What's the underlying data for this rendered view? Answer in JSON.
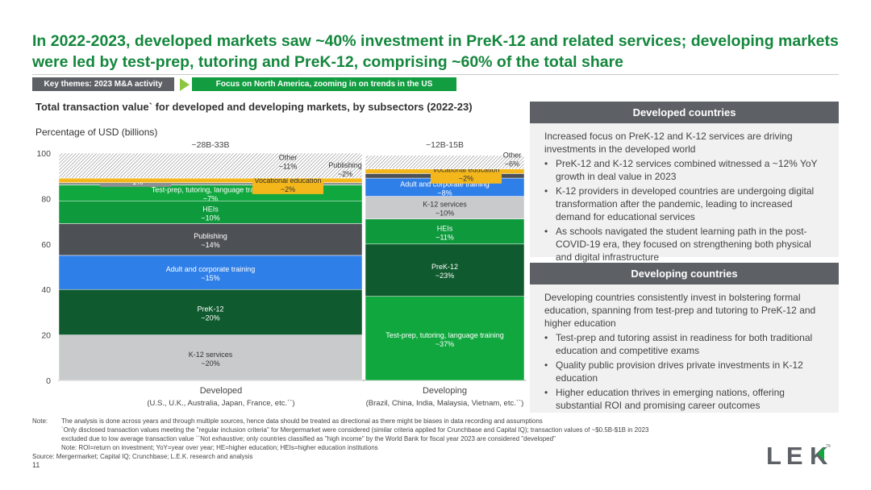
{
  "headline": "In 2022-2023, developed markets saw ~40% investment in PreK-12 and related services; developing markets were led by test-prep, tutoring and PreK-12, comprising ~60% of the total share",
  "tags": {
    "key_themes": "Key themes: 2023 M&A activity",
    "focus": "Focus on North America, zooming in on trends in the US"
  },
  "chart_header": {
    "title": "Total transaction value` for developed and developing markets, by subsectors (2022-23)",
    "subtitle": "Percentage of USD (billions)"
  },
  "colors": {
    "k12": "#c8cacc",
    "prek12": "#0f5a2e",
    "adult": "#2f7fe8",
    "publishing": "#4d5156",
    "heis": "#0e9a3c",
    "testprep": "#10a83e",
    "he_services": "#8c8f93",
    "vocational": "#f4b71b",
    "other_pattern": "#777777",
    "accent_green": "#14873d"
  },
  "chart_data": {
    "type": "bar",
    "stacked": true,
    "categories": [
      "Developed",
      "Developing"
    ],
    "category_notes": [
      "(U.S., U.K., Australia, Japan, France, etc.``)",
      "(Brazil, China, India, Malaysia, Vietnam, etc.``)"
    ],
    "totals": [
      "~28B-33B",
      "~12B-15B"
    ],
    "ylim": [
      0,
      100
    ],
    "yticks": [
      "0",
      "20",
      "40",
      "60",
      "80",
      "100"
    ],
    "grid": false,
    "columns": [
      {
        "segments": [
          {
            "key": "k12",
            "label": "K-12 services",
            "value_label": "~20%",
            "value": 20
          },
          {
            "key": "prek12",
            "label": "PreK-12",
            "value_label": "~20%",
            "value": 20
          },
          {
            "key": "adult",
            "label": "Adult and corporate training",
            "value_label": "~15%",
            "value": 15
          },
          {
            "key": "publishing",
            "label": "Publishing",
            "value_label": "~14%",
            "value": 14
          },
          {
            "key": "heis",
            "label": "HEIs",
            "value_label": "~10%",
            "value": 10
          },
          {
            "key": "testprep",
            "label": "Test-prep, tutoring, language training",
            "value_label": "~7%",
            "value": 7
          },
          {
            "key": "he_services",
            "label": "HE services",
            "value_label": "~1%",
            "value": 1
          },
          {
            "key": "vocational",
            "label": "Vocational education",
            "value_label": "~2%",
            "value": 2
          },
          {
            "key": "other",
            "label": "Other",
            "value_label": "~11%",
            "value": 11
          }
        ]
      },
      {
        "segments": [
          {
            "key": "testprep",
            "label": "Test-prep, tutoring, language training",
            "value_label": "~37%",
            "value": 37
          },
          {
            "key": "prek12",
            "label": "PreK-12",
            "value_label": "~23%",
            "value": 23
          },
          {
            "key": "heis",
            "label": "HEIs",
            "value_label": "~11%",
            "value": 11
          },
          {
            "key": "k12",
            "label": "K-12 services",
            "value_label": "~10%",
            "value": 10
          },
          {
            "key": "adult",
            "label": "Adult and corporate training",
            "value_label": "~8%",
            "value": 8
          },
          {
            "key": "publishing",
            "label": "Publishing",
            "value_label": "~2%",
            "value": 2
          },
          {
            "key": "vocational",
            "label": "Vocational education",
            "value_label": "~2%",
            "value": 2
          },
          {
            "key": "other",
            "label": "Other",
            "value_label": "~6%",
            "value": 6
          }
        ]
      }
    ]
  },
  "developed_panel": {
    "heading": "Developed countries",
    "intro": "Increased focus on PreK-12 and K-12 services are driving investments in the developed world",
    "bullets": [
      "PreK-12 and K-12 services combined witnessed a ~12% YoY growth in deal value in 2023",
      "K-12 providers in developed countries are undergoing digital transformation after the pandemic, leading to increased demand for educational services",
      "As schools navigated the student learning path in the post-COVID-19 era, they focused on strengthening both physical and digital infrastructure"
    ]
  },
  "developing_panel": {
    "heading": "Developing countries",
    "intro": "Developing countries consistently invest in bolstering formal education, spanning from test-prep and tutoring to PreK-12 and higher education",
    "bullets": [
      "Test-prep and tutoring assist in readiness for both traditional education and competitive exams",
      "Quality public provision drives private investments in K-12 education",
      "Higher education thrives in emerging nations, offering substantial ROI and promising career outcomes"
    ]
  },
  "notes": {
    "label": "Note:",
    "lines": [
      "The analysis is done across years and through multiple sources, hence data should be treated as directional as there might be biases in data recording and assumptions",
      "`Only disclosed transaction values meeting the \"regular inclusion criteria\" for Mergermarket were considered (similar criteria applied for Crunchbase and Capital IQ); transaction values of ~$0.5B-$1B in 2023",
      "excluded due to low average transaction value ``Not exhaustive; only countries classified as \"high income\" by the World Bank for fiscal year 2023 are considered \"developed\"",
      "Note: ROI=return on investment; YoY=year over year; HE=higher education; HEIs=higher education institutions"
    ],
    "source": "Source: Mergermarket; Capital IQ; Crunchbase; L.E.K. research and analysis"
  },
  "page_number": "11",
  "logo_text": "LEK",
  "logo_tm": "TM"
}
